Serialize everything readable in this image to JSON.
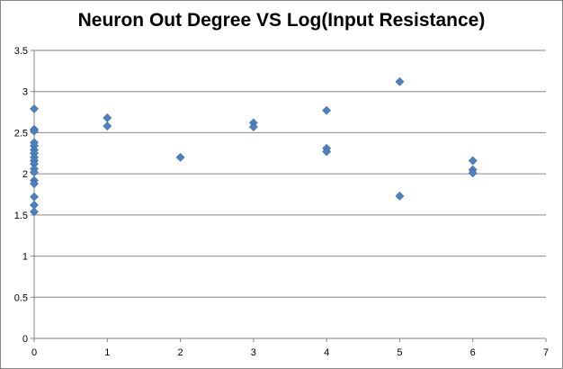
{
  "chart_data": {
    "type": "scatter",
    "title": "Neuron Out Degree VS Log(Input Resistance)",
    "xlabel": "",
    "ylabel": "",
    "xlim": [
      0,
      7
    ],
    "ylim": [
      0,
      3.5
    ],
    "xticks": [
      "0",
      "1",
      "2",
      "3",
      "4",
      "5",
      "6",
      "7"
    ],
    "yticks": [
      "0",
      "0.5",
      "1",
      "1.5",
      "2",
      "2.5",
      "3",
      "3.5"
    ],
    "grid": "horizontal",
    "legend": "none",
    "marker": "diamond",
    "color": "#4f81bd",
    "points": [
      {
        "x": 0,
        "y": 2.79
      },
      {
        "x": 0,
        "y": 2.54
      },
      {
        "x": 0,
        "y": 2.52
      },
      {
        "x": 0,
        "y": 2.38
      },
      {
        "x": 0,
        "y": 2.34
      },
      {
        "x": 0,
        "y": 2.29
      },
      {
        "x": 0,
        "y": 2.25
      },
      {
        "x": 0,
        "y": 2.2
      },
      {
        "x": 0,
        "y": 2.16
      },
      {
        "x": 0,
        "y": 2.12
      },
      {
        "x": 0,
        "y": 2.06
      },
      {
        "x": 0,
        "y": 2.02
      },
      {
        "x": 0,
        "y": 1.92
      },
      {
        "x": 0,
        "y": 1.88
      },
      {
        "x": 0,
        "y": 1.72
      },
      {
        "x": 0,
        "y": 1.62
      },
      {
        "x": 0,
        "y": 1.54
      },
      {
        "x": 1,
        "y": 2.68
      },
      {
        "x": 1,
        "y": 2.58
      },
      {
        "x": 2,
        "y": 2.2
      },
      {
        "x": 3,
        "y": 2.62
      },
      {
        "x": 3,
        "y": 2.57
      },
      {
        "x": 4,
        "y": 2.77
      },
      {
        "x": 4,
        "y": 2.31
      },
      {
        "x": 4,
        "y": 2.27
      },
      {
        "x": 5,
        "y": 3.12
      },
      {
        "x": 5,
        "y": 1.73
      },
      {
        "x": 6,
        "y": 2.16
      },
      {
        "x": 6,
        "y": 2.05
      },
      {
        "x": 6,
        "y": 2.01
      }
    ]
  }
}
